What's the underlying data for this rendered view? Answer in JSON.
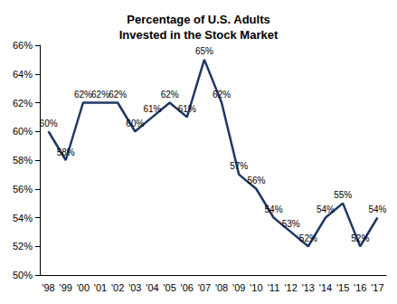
{
  "chart_data": {
    "type": "line",
    "title": "Percentage of U.S. Adults\nInvested in the Stock Market",
    "categories": [
      "'98",
      "'99",
      "'00",
      "'01",
      "'02",
      "'03",
      "'04",
      "'05",
      "'06",
      "'07",
      "'08",
      "'09",
      "'10",
      "'11",
      "'12",
      "'13",
      "'14",
      "'15",
      "'16",
      "'17"
    ],
    "values": [
      60,
      58,
      62,
      62,
      62,
      60,
      61,
      62,
      61,
      65,
      62,
      57,
      56,
      54,
      53,
      52,
      54,
      55,
      52,
      54
    ],
    "value_labels": [
      "60%",
      "58%",
      "62%",
      "62%",
      "62%",
      "60%",
      "61%",
      "62%",
      "61%",
      "65%",
      "62%",
      "57%",
      "56%",
      "54%",
      "53%",
      "52%",
      "54%",
      "55%",
      "52%",
      "54%"
    ],
    "data_labels": true,
    "color": "#1f3864",
    "ylim": [
      50,
      66
    ],
    "yticks": [
      {
        "value": 50,
        "label": "50%"
      },
      {
        "value": 52,
        "label": "52%"
      },
      {
        "value": 54,
        "label": "54%"
      },
      {
        "value": 56,
        "label": "56%"
      },
      {
        "value": 58,
        "label": "58%"
      },
      {
        "value": 60,
        "label": "60%"
      },
      {
        "value": 62,
        "label": "62%"
      },
      {
        "value": 64,
        "label": "64%"
      },
      {
        "value": 66,
        "label": "66%"
      }
    ],
    "grid": false
  }
}
